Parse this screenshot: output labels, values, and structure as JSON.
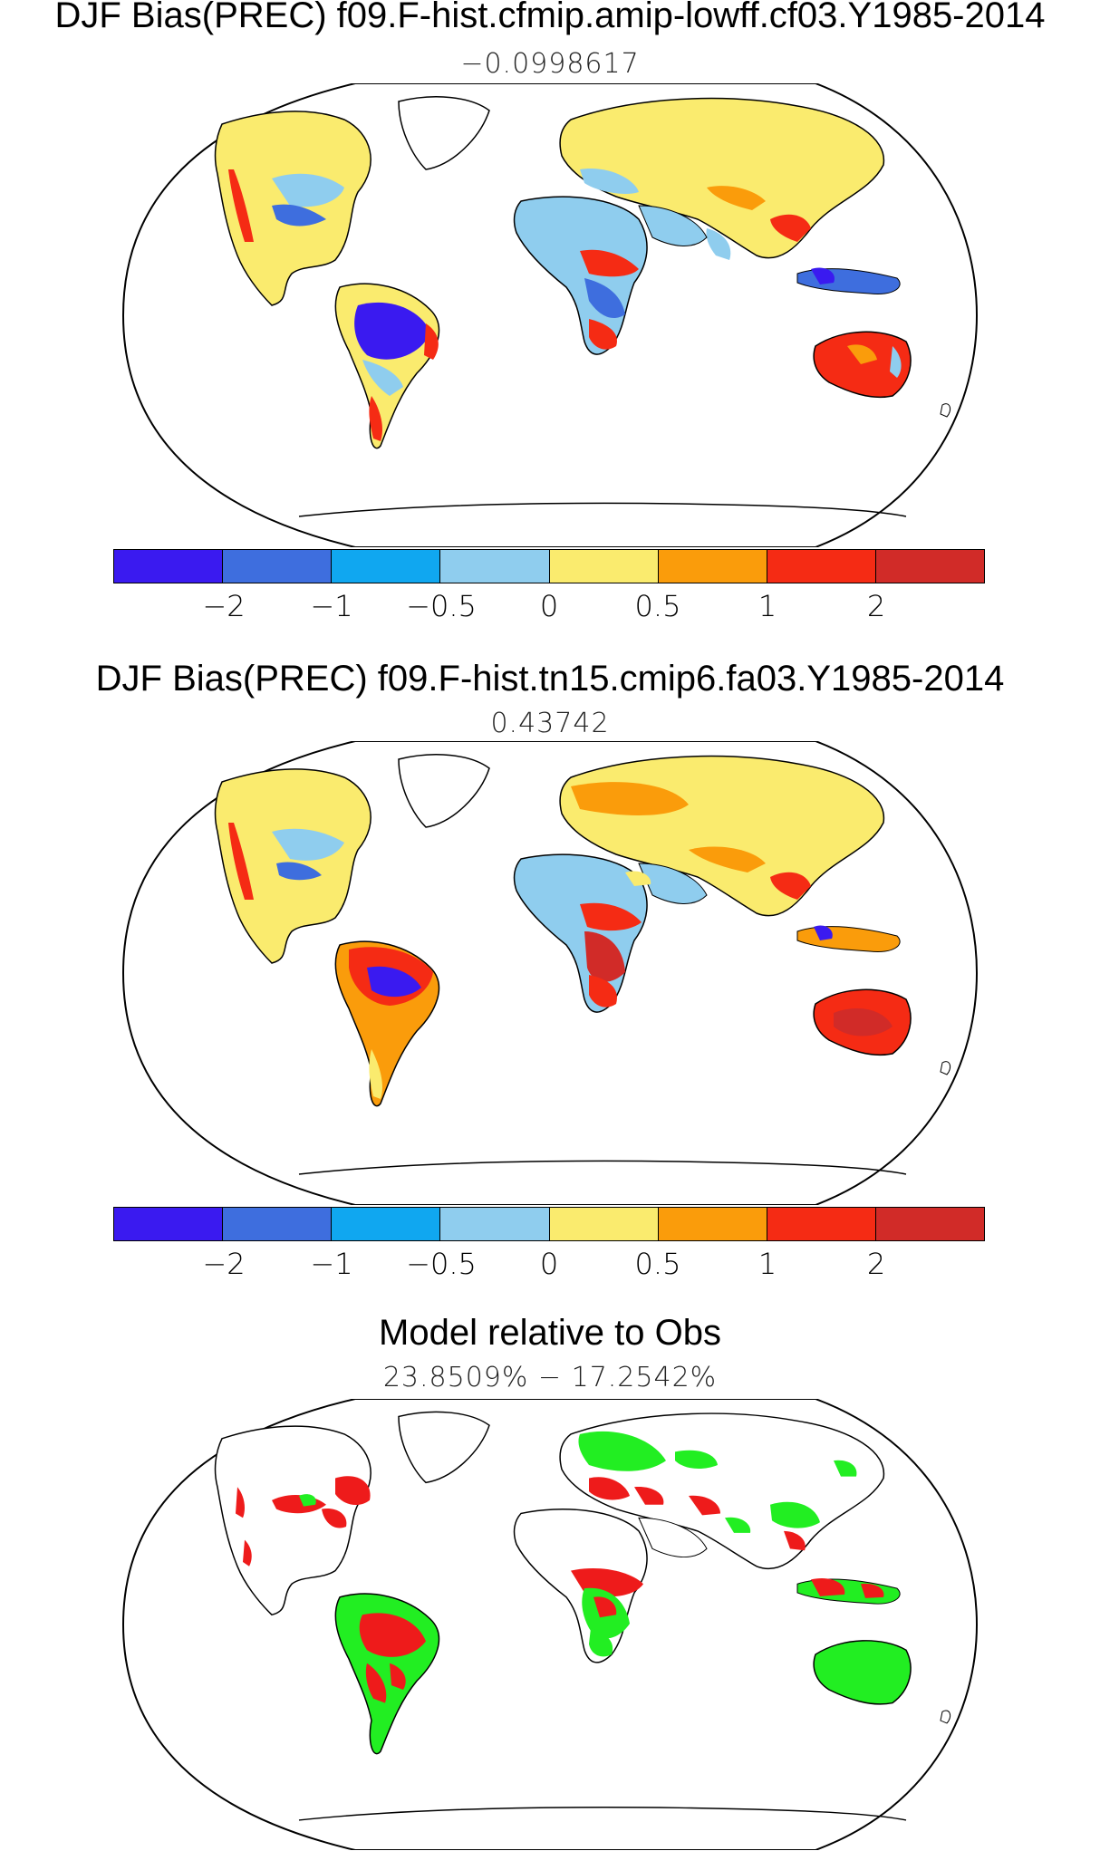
{
  "panels": [
    {
      "title": "DJF Bias(PREC) f09.F-hist.cfmip.amip-lowff.cf03.Y1985-2014",
      "subtitle": "−0.0998617"
    },
    {
      "title": "DJF Bias(PREC) f09.F-hist.tn15.cmip6.fa03.Y1985-2014",
      "subtitle": "0.43742"
    },
    {
      "title": "Model relative to Obs",
      "subtitle": "23.8509% − 17.2542%"
    }
  ],
  "colorbar": {
    "colors": [
      "#3a1af0",
      "#3e6ede",
      "#10a7f0",
      "#8fcdee",
      "#faeb6e",
      "#fa9c0b",
      "#f52b14",
      "#d12b28"
    ],
    "tick_labels": [
      "−2",
      "−1",
      "−0.5",
      "0",
      "0.5",
      "1",
      "2"
    ]
  },
  "comparison_colors": {
    "model_better": "#22ee22",
    "model_worse": "#ee1b1b"
  }
}
